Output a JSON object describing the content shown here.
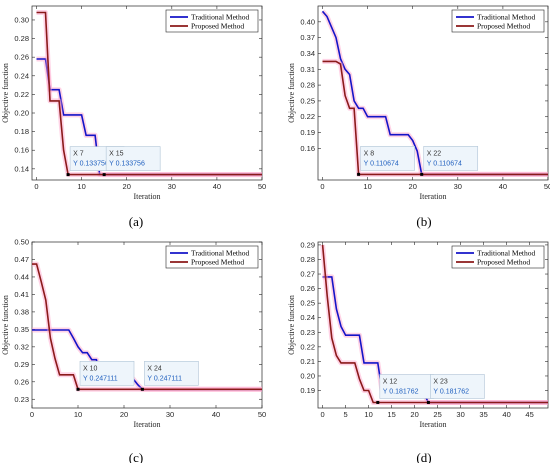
{
  "colors": {
    "traditional": "#1414c8",
    "proposed": "#8b1a1a",
    "glow": "#ff9ec8",
    "tipbg": "#eef5fb"
  },
  "chart_data": [
    {
      "type": "line",
      "caption": "(a)",
      "xlabel": "Iteration",
      "ylabel": "Objective function",
      "xlim": [
        -1,
        50
      ],
      "ylim": [
        0.128,
        0.315
      ],
      "xticks": [
        "0",
        "10",
        "20",
        "30",
        "40",
        "50"
      ],
      "yticks": [
        "0.14",
        "0.16",
        "0.18",
        "0.20",
        "0.22",
        "0.24",
        "0.26",
        "0.28",
        "0.30"
      ],
      "legend": "top-right",
      "series": [
        {
          "name": "Traditional Method",
          "key": "traditional",
          "points": [
            [
              0,
              0.258
            ],
            [
              2,
              0.258
            ],
            [
              3,
              0.225
            ],
            [
              5,
              0.225
            ],
            [
              6,
              0.198
            ],
            [
              9,
              0.198
            ],
            [
              10,
              0.198
            ],
            [
              11,
              0.176
            ],
            [
              13,
              0.176
            ],
            [
              14,
              0.134
            ],
            [
              15,
              0.1338
            ],
            [
              50,
              0.1338
            ]
          ]
        },
        {
          "name": "Proposed Method",
          "key": "proposed",
          "points": [
            [
              0,
              0.308
            ],
            [
              2,
              0.308
            ],
            [
              3,
              0.213
            ],
            [
              5,
              0.213
            ],
            [
              6,
              0.16
            ],
            [
              7,
              0.1338
            ],
            [
              50,
              0.1338
            ]
          ]
        }
      ],
      "datatips": [
        {
          "x_text": "X 7",
          "y_text": "Y 0.133756",
          "x": 7,
          "y": 0.1338
        },
        {
          "x_text": "X 15",
          "y_text": "Y 0.133756",
          "x": 15,
          "y": 0.1338
        }
      ]
    },
    {
      "type": "line",
      "caption": "(b)",
      "xlabel": "Iteration",
      "ylabel": "Objective function",
      "xlim": [
        -1,
        50
      ],
      "ylim": [
        0.1,
        0.43
      ],
      "xticks": [
        "0",
        "10",
        "20",
        "30",
        "40",
        "50"
      ],
      "yticks": [
        "0.16",
        "0.19",
        "0.22",
        "0.25",
        "0.28",
        "0.31",
        "0.34",
        "0.37",
        "0.40"
      ],
      "legend": "top-right",
      "series": [
        {
          "name": "Traditional Method",
          "key": "traditional",
          "points": [
            [
              0,
              0.42
            ],
            [
              1,
              0.41
            ],
            [
              2,
              0.39
            ],
            [
              3,
              0.37
            ],
            [
              4,
              0.33
            ],
            [
              5,
              0.31
            ],
            [
              6,
              0.3
            ],
            [
              7,
              0.25
            ],
            [
              8,
              0.236
            ],
            [
              9,
              0.236
            ],
            [
              10,
              0.22
            ],
            [
              14,
              0.22
            ],
            [
              15,
              0.186
            ],
            [
              19,
              0.186
            ],
            [
              20,
              0.175
            ],
            [
              21,
              0.155
            ],
            [
              22,
              0.1107
            ],
            [
              50,
              0.1107
            ]
          ]
        },
        {
          "name": "Proposed Method",
          "key": "proposed",
          "points": [
            [
              0,
              0.325
            ],
            [
              3,
              0.325
            ],
            [
              4,
              0.32
            ],
            [
              5,
              0.26
            ],
            [
              6,
              0.236
            ],
            [
              7,
              0.236
            ],
            [
              8,
              0.1107
            ],
            [
              50,
              0.1107
            ]
          ]
        }
      ],
      "datatips": [
        {
          "x_text": "X 8",
          "y_text": "Y 0.110674",
          "x": 8,
          "y": 0.1107
        },
        {
          "x_text": "X 22",
          "y_text": "Y 0.110674",
          "x": 22,
          "y": 0.1107
        }
      ]
    },
    {
      "type": "line",
      "caption": "(c)",
      "xlabel": "Iteration",
      "ylabel": "Objective function",
      "xlim": [
        0,
        50
      ],
      "ylim": [
        0.215,
        0.5
      ],
      "xticks": [
        "0",
        "10",
        "20",
        "30",
        "40",
        "50"
      ],
      "yticks": [
        "0.23",
        "0.26",
        "0.29",
        "0.32",
        "0.35",
        "0.38",
        "0.41",
        "0.44",
        "0.47",
        "0.50"
      ],
      "legend": "top-right",
      "series": [
        {
          "name": "Traditional Method",
          "key": "traditional",
          "points": [
            [
              0,
              0.349
            ],
            [
              8,
              0.349
            ],
            [
              9,
              0.335
            ],
            [
              10,
              0.32
            ],
            [
              11,
              0.31
            ],
            [
              12,
              0.31
            ],
            [
              13,
              0.298
            ],
            [
              14,
              0.298
            ],
            [
              15,
              0.265
            ],
            [
              22,
              0.265
            ],
            [
              23,
              0.255
            ],
            [
              24,
              0.2471
            ],
            [
              50,
              0.2471
            ]
          ]
        },
        {
          "name": "Proposed Method",
          "key": "proposed",
          "points": [
            [
              0,
              0.462
            ],
            [
              1,
              0.462
            ],
            [
              2,
              0.432
            ],
            [
              3,
              0.4
            ],
            [
              4,
              0.335
            ],
            [
              5,
              0.3
            ],
            [
              6,
              0.272
            ],
            [
              9,
              0.272
            ],
            [
              10,
              0.2471
            ],
            [
              50,
              0.2471
            ]
          ]
        }
      ],
      "datatips": [
        {
          "x_text": "X 10",
          "y_text": "Y 0.247111",
          "x": 10,
          "y": 0.2471
        },
        {
          "x_text": "X 24",
          "y_text": "Y 0.247111",
          "x": 24,
          "y": 0.2471
        }
      ]
    },
    {
      "type": "line",
      "caption": "(d)",
      "xlabel": "Iteration",
      "ylabel": "Objective function",
      "xlim": [
        -1,
        49
      ],
      "ylim": [
        0.178,
        0.292
      ],
      "xticks": [
        "0",
        "5",
        "10",
        "15",
        "20",
        "25",
        "30",
        "35",
        "40",
        "45"
      ],
      "yticks": [
        "0.19",
        "0.20",
        "0.21",
        "0.22",
        "0.23",
        "0.24",
        "0.25",
        "0.26",
        "0.27",
        "0.28",
        "0.29"
      ],
      "legend": "top-right",
      "series": [
        {
          "name": "Traditional Method",
          "key": "traditional",
          "points": [
            [
              0,
              0.268
            ],
            [
              2,
              0.268
            ],
            [
              3,
              0.246
            ],
            [
              4,
              0.234
            ],
            [
              5,
              0.228
            ],
            [
              8,
              0.228
            ],
            [
              9,
              0.209
            ],
            [
              12,
              0.209
            ],
            [
              13,
              0.188
            ],
            [
              22,
              0.188
            ],
            [
              23,
              0.1818
            ],
            [
              49,
              0.1818
            ]
          ]
        },
        {
          "name": "Proposed Method",
          "key": "proposed",
          "points": [
            [
              0,
              0.29
            ],
            [
              1,
              0.255
            ],
            [
              2,
              0.226
            ],
            [
              3,
              0.214
            ],
            [
              4,
              0.209
            ],
            [
              7,
              0.209
            ],
            [
              8,
              0.198
            ],
            [
              9,
              0.19
            ],
            [
              10,
              0.19
            ],
            [
              11,
              0.1818
            ],
            [
              12,
              0.1818
            ],
            [
              49,
              0.1818
            ]
          ]
        }
      ],
      "datatips": [
        {
          "x_text": "X 12",
          "y_text": "Y 0.181762",
          "x": 12,
          "y": 0.1818
        },
        {
          "x_text": "X 23",
          "y_text": "Y 0.181762",
          "x": 23,
          "y": 0.1818
        }
      ]
    }
  ]
}
